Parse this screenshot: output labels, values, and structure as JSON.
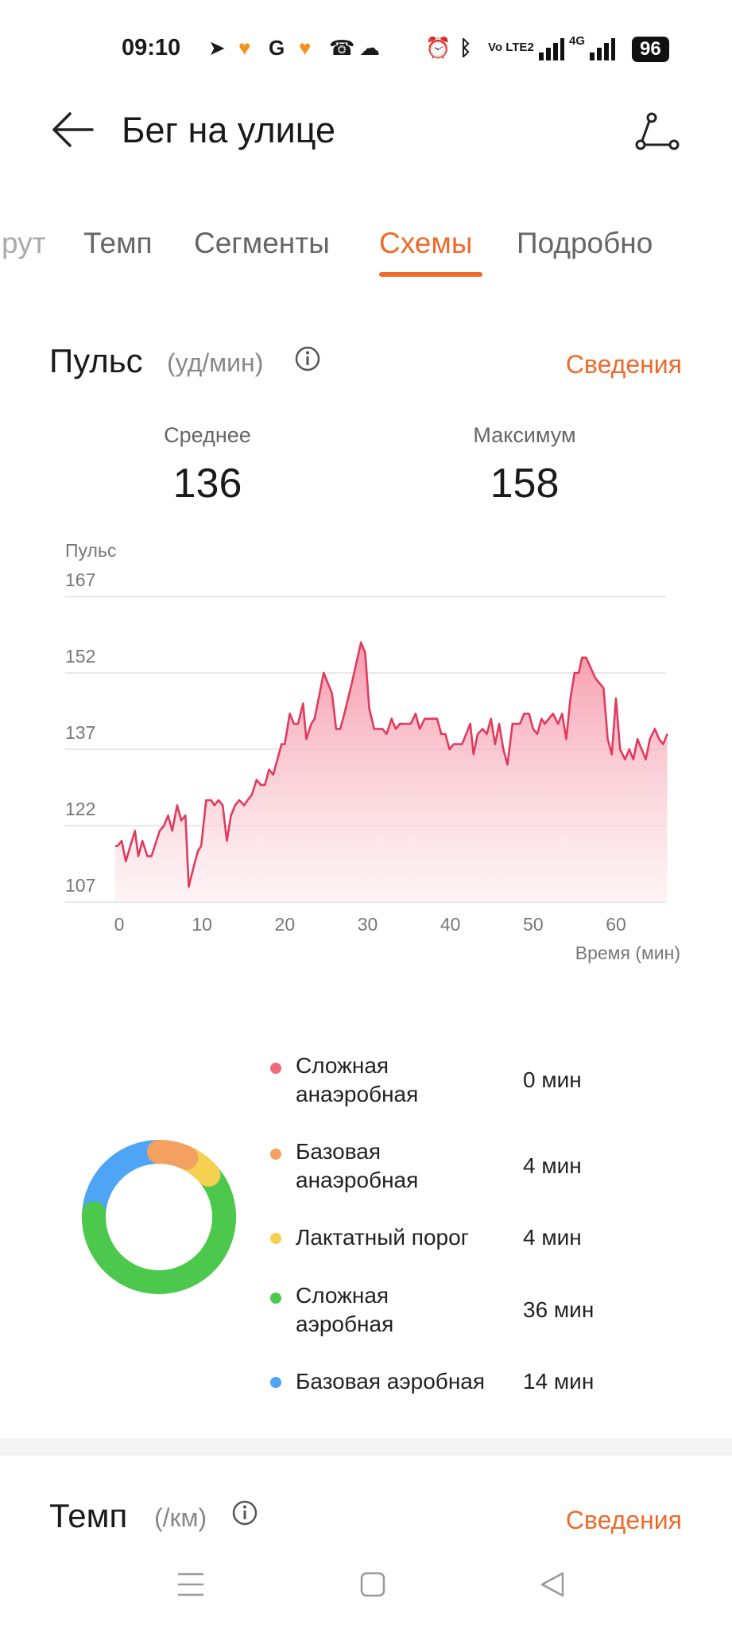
{
  "status_bar": {
    "time": "09:10",
    "notification_icons": [
      "telegram-icon",
      "heart-icon",
      "google-icon",
      "heart-icon",
      "missed-call-icon",
      "cloud-icon"
    ],
    "system_icons": [
      "alarm-icon",
      "bluetooth-icon",
      "volte-icon",
      "signal-icon",
      "4g-signal-icon"
    ],
    "volte": "Vo LTE2",
    "net": "4G",
    "battery": "96"
  },
  "header": {
    "title": "Бег на улице",
    "back_icon": "arrow-left-icon",
    "share_icon": "share-icon"
  },
  "tabs": [
    {
      "label": "Маршрут",
      "visible": "рут"
    },
    {
      "label": "Темп"
    },
    {
      "label": "Сегменты"
    },
    {
      "label": "Схемы",
      "active": true
    },
    {
      "label": "Подробно"
    }
  ],
  "pulse": {
    "title": "Пульс",
    "unit": "(уд/мин)",
    "details": "Сведения",
    "avg_label": "Среднее",
    "avg_value": "136",
    "max_label": "Максимум",
    "max_value": "158"
  },
  "colors": {
    "accent": "#ee6a2c",
    "line": "#e23a5e"
  },
  "chart_data": {
    "type": "area",
    "ylabel": "Пульс",
    "xlabel": "Время (мин)",
    "ylim": [
      107,
      167
    ],
    "xlim": [
      -0.5,
      66.5
    ],
    "yticks": [
      167,
      152,
      137,
      122,
      107
    ],
    "xticks": [
      0,
      10,
      20,
      30,
      40,
      50,
      60
    ],
    "grid": true,
    "x": [
      -0.5,
      -0.2,
      0.3,
      0.8,
      1.9,
      2.3,
      2.8,
      3.4,
      3.9,
      4.9,
      5.4,
      5.9,
      6.4,
      7,
      7.5,
      8,
      8.4,
      9,
      9.5,
      9.9,
      10.5,
      11.1,
      11.5,
      12,
      12.5,
      13,
      13.5,
      14,
      14.5,
      15.1,
      15.5,
      16,
      16.6,
      17.1,
      17.6,
      18.1,
      18.6,
      19.6,
      20,
      20.6,
      21.1,
      21.6,
      22.2,
      22.6,
      23.2,
      23.6,
      24.7,
      25.7,
      26.2,
      26.7,
      27.2,
      28.1,
      29.2,
      29.7,
      30.2,
      30.8,
      31.8,
      32.3,
      32.9,
      33.4,
      33.9,
      35.2,
      35.8,
      36.3,
      36.9,
      38.4,
      38.9,
      39.4,
      39.9,
      40.4,
      41.4,
      42.4,
      42.8,
      43.3,
      43.9,
      44.4,
      44.9,
      45.4,
      45.9,
      46.4,
      46.9,
      47.5,
      48.4,
      48.9,
      49.5,
      50,
      50.5,
      51,
      51.4,
      52.4,
      53,
      53.5,
      54,
      54.5,
      55,
      55.5,
      55.9,
      56.4,
      57.5,
      58.5,
      59,
      59.5,
      60,
      60.5,
      61.1,
      61.6,
      62.1,
      62.6,
      63.6,
      64.1,
      64.7,
      65.2,
      65.7,
      66.2
    ],
    "y": [
      118,
      118,
      119,
      115,
      121,
      116,
      119,
      116,
      116,
      121,
      122,
      124,
      121,
      126,
      123,
      124,
      110,
      114,
      117,
      118,
      127,
      127,
      126,
      127,
      126,
      119,
      124,
      126,
      127,
      126,
      127,
      128,
      131,
      130,
      130,
      133,
      132,
      138,
      138,
      144,
      142,
      142,
      146,
      139,
      142,
      143,
      152,
      148,
      141,
      141,
      144,
      150,
      158,
      156,
      145,
      141,
      141,
      140,
      143,
      141,
      142,
      142,
      144,
      141,
      143,
      143,
      140,
      140,
      137,
      138,
      138,
      142,
      136,
      140,
      141,
      140,
      143,
      138,
      142,
      137,
      134,
      142,
      142,
      144,
      144,
      141,
      140,
      143,
      142,
      144,
      142,
      144,
      139,
      147,
      152,
      152,
      155,
      155,
      151,
      149,
      139,
      136,
      147,
      137,
      135,
      137,
      135,
      139,
      135,
      139,
      141,
      139,
      138,
      140
    ]
  },
  "zones": [
    {
      "name": "Сложная анаэробная",
      "line1": "Сложная",
      "line2": "анаэробная",
      "value": "0 мин",
      "minutes": 0,
      "color": "#f06a78"
    },
    {
      "name": "Базовая анаэробная",
      "line1": "Базовая",
      "line2": "анаэробная",
      "value": "4 мин",
      "minutes": 4,
      "color": "#f4a060"
    },
    {
      "name": "Лактатный порог",
      "line1": "Лактатный порог",
      "line2": "",
      "value": "4 мин",
      "minutes": 4,
      "color": "#f5cf50"
    },
    {
      "name": "Сложная аэробная",
      "line1": "Сложная",
      "line2": "аэробная",
      "value": "36 мин",
      "minutes": 36,
      "color": "#4cc94c"
    },
    {
      "name": "Базовая аэробная",
      "line1": "Базовая аэробная",
      "line2": "",
      "value": "14 мин",
      "minutes": 14,
      "color": "#4ea4f5"
    }
  ],
  "pace": {
    "title": "Темп",
    "unit": "(/км)",
    "details": "Сведения"
  },
  "nav": {
    "icons": [
      "menu-icon",
      "home-icon",
      "back-icon"
    ]
  }
}
